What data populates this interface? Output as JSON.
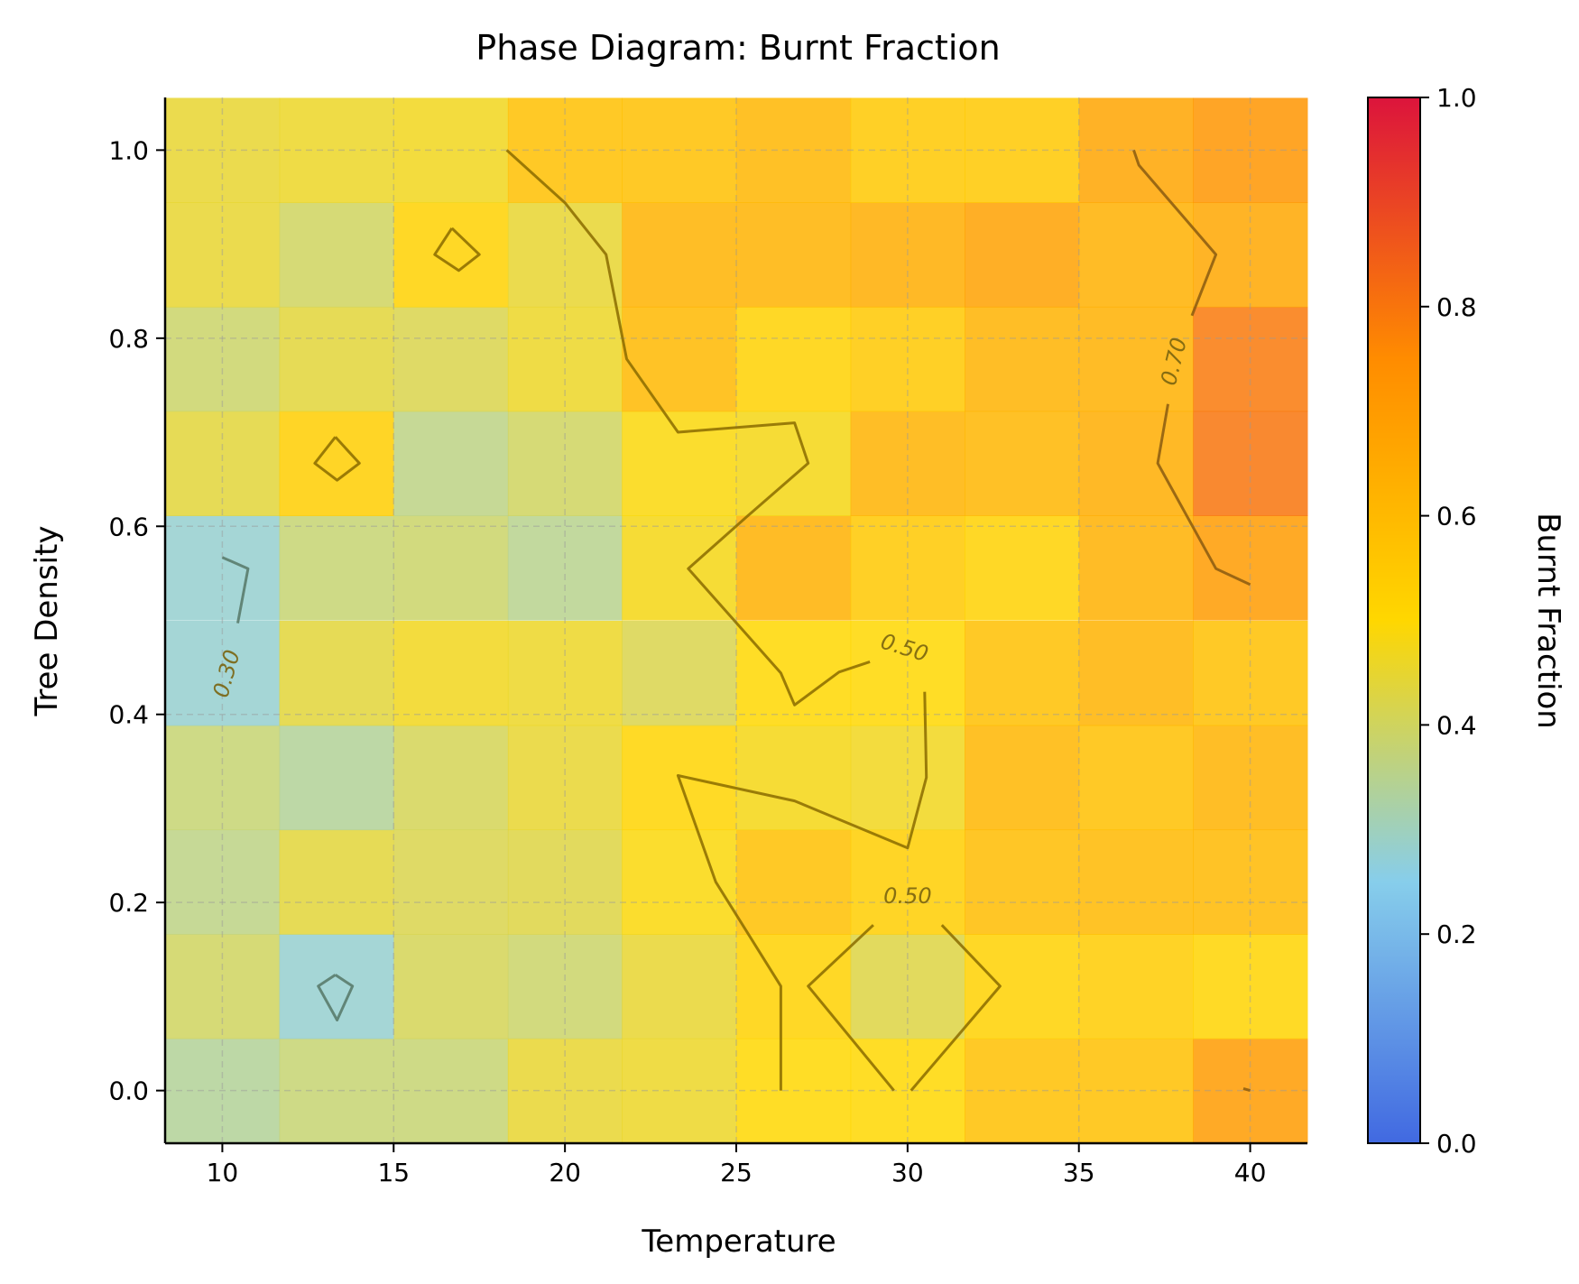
{
  "chart_data": {
    "type": "heatmap",
    "title": "Phase Diagram: Burnt Fraction",
    "xlabel": "Temperature",
    "ylabel": "Tree Density",
    "x": [
      10.0,
      13.33,
      16.67,
      20.0,
      23.33,
      26.67,
      30.0,
      33.33,
      36.67,
      40.0
    ],
    "y": [
      0.0,
      0.111,
      0.222,
      0.333,
      0.444,
      0.556,
      0.667,
      0.778,
      0.889,
      1.0
    ],
    "xlim": [
      8.33,
      41.67
    ],
    "ylim": [
      -0.056,
      1.056
    ],
    "xticks": [
      10,
      15,
      20,
      25,
      30,
      35,
      40
    ],
    "xtick_labels": [
      "10",
      "15",
      "20",
      "25",
      "30",
      "35",
      "40"
    ],
    "yticks": [
      0.0,
      0.2,
      0.4,
      0.6,
      0.8,
      1.0
    ],
    "ytick_labels": [
      "0.0",
      "0.2",
      "0.4",
      "0.6",
      "0.8",
      "1.0"
    ],
    "grid": true,
    "values": [
      [
        0.34,
        0.38,
        0.38,
        0.45,
        0.46,
        0.5,
        0.5,
        0.58,
        0.58,
        0.7
      ],
      [
        0.4,
        0.28,
        0.41,
        0.39,
        0.45,
        0.52,
        0.43,
        0.52,
        0.54,
        0.51
      ],
      [
        0.36,
        0.44,
        0.42,
        0.43,
        0.49,
        0.58,
        0.53,
        0.59,
        0.6,
        0.6
      ],
      [
        0.38,
        0.34,
        0.41,
        0.45,
        0.51,
        0.48,
        0.47,
        0.61,
        0.58,
        0.62
      ],
      [
        0.28,
        0.44,
        0.47,
        0.46,
        0.42,
        0.5,
        0.5,
        0.58,
        0.62,
        0.58
      ],
      [
        0.28,
        0.38,
        0.39,
        0.35,
        0.48,
        0.63,
        0.55,
        0.52,
        0.63,
        0.7
      ],
      [
        0.44,
        0.53,
        0.36,
        0.4,
        0.49,
        0.48,
        0.62,
        0.61,
        0.64,
        0.8
      ],
      [
        0.39,
        0.44,
        0.42,
        0.46,
        0.6,
        0.52,
        0.55,
        0.62,
        0.63,
        0.79
      ],
      [
        0.45,
        0.4,
        0.52,
        0.45,
        0.62,
        0.62,
        0.64,
        0.68,
        0.63,
        0.66
      ],
      [
        0.45,
        0.46,
        0.47,
        0.58,
        0.58,
        0.61,
        0.55,
        0.55,
        0.67,
        0.72
      ]
    ],
    "colorbar": {
      "label": "Burnt Fraction",
      "range": [
        0,
        1
      ],
      "ticks": [
        0.0,
        0.2,
        0.4,
        0.6,
        0.8,
        1.0
      ],
      "tick_labels": [
        "0.0",
        "0.2",
        "0.4",
        "0.6",
        "0.8",
        "1.0"
      ],
      "colors": [
        "#4169e1",
        "#87ceeb",
        "#ffd700",
        "#ff8c00",
        "#dc143c"
      ]
    },
    "contours": [
      {
        "level": 0.5,
        "points": [
          [
            18.3,
            1.0
          ],
          [
            20.0,
            0.944
          ],
          [
            21.2,
            0.889
          ],
          [
            21.8,
            0.778
          ],
          [
            23.3,
            0.7
          ],
          [
            26.7,
            0.71
          ],
          [
            27.1,
            0.667
          ],
          [
            25.3,
            0.61
          ],
          [
            23.6,
            0.555
          ],
          [
            26.3,
            0.444
          ],
          [
            26.7,
            0.41
          ],
          [
            28.0,
            0.445
          ],
          [
            28.9,
            0.456
          ]
        ]
      },
      {
        "level": 0.5,
        "points": [
          [
            30.5,
            0.424
          ],
          [
            30.55,
            0.333
          ],
          [
            30.0,
            0.258
          ],
          [
            26.7,
            0.308
          ],
          [
            23.3,
            0.335
          ],
          [
            24.4,
            0.222
          ],
          [
            26.3,
            0.111
          ],
          [
            26.3,
            0.0
          ]
        ]
      },
      {
        "level": 0.5,
        "points": [
          [
            29.0,
            0.176
          ],
          [
            27.1,
            0.111
          ],
          [
            29.6,
            0.0
          ]
        ]
      },
      {
        "level": 0.5,
        "points": [
          [
            30.1,
            0.0
          ],
          [
            32.7,
            0.111
          ],
          [
            31.0,
            0.176
          ]
        ]
      },
      {
        "level": 0.5,
        "points": [
          [
            16.7,
            0.917
          ],
          [
            17.5,
            0.889
          ],
          [
            16.9,
            0.872
          ],
          [
            16.2,
            0.889
          ],
          [
            16.7,
            0.917
          ]
        ]
      },
      {
        "level": 0.5,
        "points": [
          [
            13.3,
            0.695
          ],
          [
            14.0,
            0.667
          ],
          [
            13.35,
            0.649
          ],
          [
            12.7,
            0.667
          ],
          [
            13.3,
            0.695
          ]
        ]
      },
      {
        "level": 0.3,
        "points": [
          [
            10.0,
            0.567
          ],
          [
            10.75,
            0.555
          ],
          [
            10.45,
            0.497
          ]
        ]
      },
      {
        "level": 0.3,
        "points": [
          [
            13.3,
            0.123
          ],
          [
            13.8,
            0.111
          ],
          [
            13.35,
            0.075
          ],
          [
            12.8,
            0.111
          ],
          [
            13.3,
            0.123
          ]
        ]
      },
      {
        "level": 0.7,
        "points": [
          [
            36.6,
            1.0
          ],
          [
            36.75,
            0.984
          ],
          [
            39.0,
            0.889
          ],
          [
            38.3,
            0.824
          ]
        ]
      },
      {
        "level": 0.7,
        "points": [
          [
            37.6,
            0.73
          ],
          [
            37.3,
            0.667
          ],
          [
            39.0,
            0.555
          ],
          [
            40.0,
            0.538
          ]
        ]
      },
      {
        "level": 0.7,
        "points": [
          [
            39.8,
            0.002
          ],
          [
            40.0,
            0.0
          ]
        ]
      }
    ],
    "contour_labels": [
      {
        "text": "0.50",
        "x": 29.9,
        "y": 0.47,
        "angle": 17
      },
      {
        "text": "0.50",
        "x": 30.0,
        "y": 0.206,
        "angle": 0
      },
      {
        "text": "0.30",
        "x": 10.15,
        "y": 0.443,
        "angle": -75
      },
      {
        "text": "0.70",
        "x": 37.8,
        "y": 0.775,
        "angle": -76
      }
    ]
  }
}
